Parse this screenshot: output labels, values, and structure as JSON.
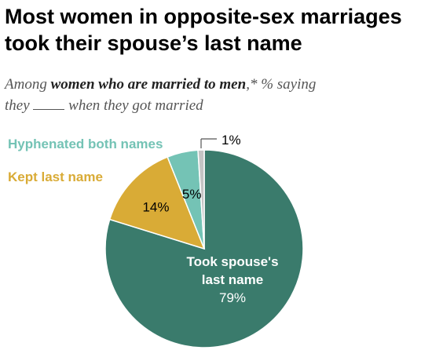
{
  "title": "Most women in opposite-sex marriages took their spouse’s last name",
  "subtitle": {
    "prefix": "Among ",
    "emphasis": "women who are married to men",
    "suffix_1": ",* % saying",
    "line2_start": "they",
    "line2_end": "when they got married"
  },
  "colors": {
    "took": "#3a7b6c",
    "kept": "#d9ab36",
    "hyphenated": "#74c3b5",
    "other": "#c4c4c4"
  },
  "chart_data": {
    "type": "pie",
    "slices": [
      {
        "label": "Took spouse's last name",
        "label_lines": [
          "Took spouse's",
          "last name"
        ],
        "value": 79,
        "value_label": "79%"
      },
      {
        "label": "Kept last name",
        "value": 14,
        "value_label": "14%"
      },
      {
        "label": "Hyphenated both names",
        "value": 5,
        "value_label": "5%"
      },
      {
        "label": "",
        "value": 1,
        "value_label": "1%"
      }
    ]
  }
}
